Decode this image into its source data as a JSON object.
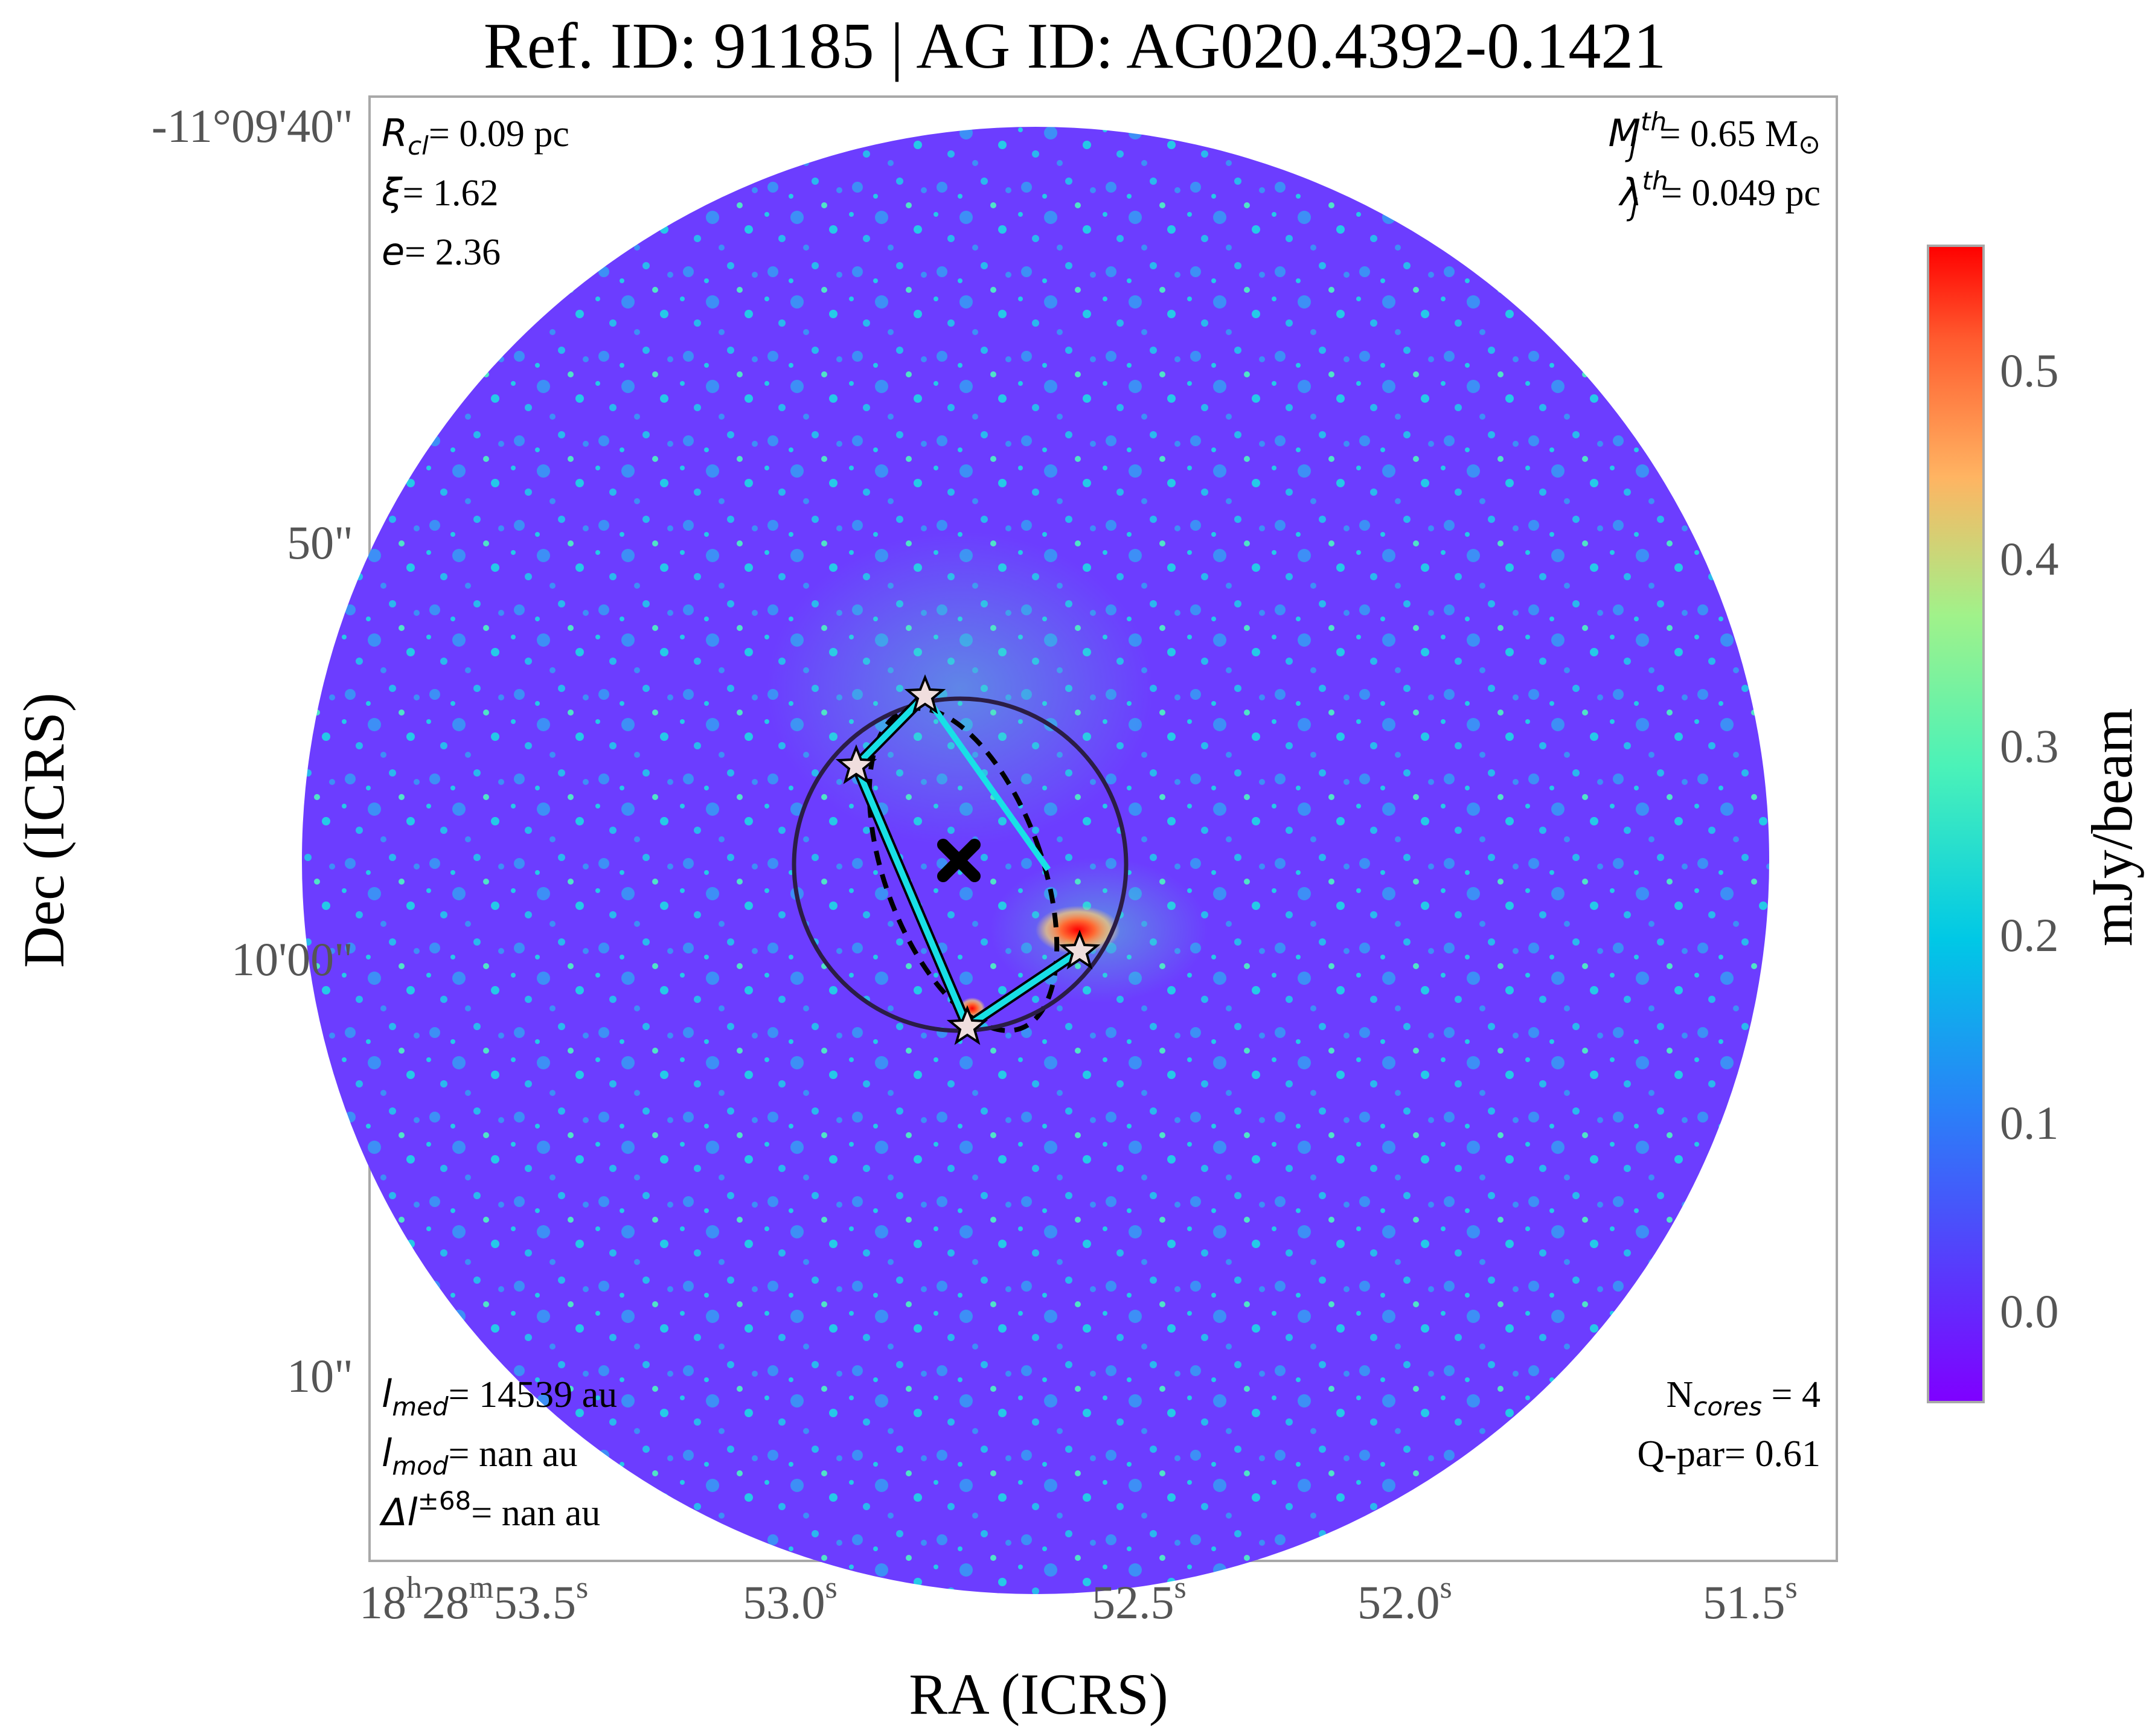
{
  "title": "Ref. ID: 91185 | AG ID: AG020.4392-0.1421",
  "axes": {
    "xlabel": "RA (ICRS)",
    "ylabel": "Dec (ICRS)",
    "x_ticks": [
      {
        "main": "18",
        "sup1": "h",
        "mid": "28",
        "sup2": "m",
        "sec": "53.5",
        "sup3": "s"
      },
      {
        "sec": "53.0",
        "sup3": "s"
      },
      {
        "sec": "52.5",
        "sup3": "s"
      },
      {
        "sec": "52.0",
        "sup3": "s"
      },
      {
        "sec": "51.5",
        "sup3": "s"
      }
    ],
    "y_ticks": [
      "-11°09'40\"",
      "50\"",
      "10'00\"",
      "10\""
    ]
  },
  "colorbar": {
    "label": "mJy/beam",
    "ticks": [
      "0.5",
      "0.4",
      "0.3",
      "0.2",
      "0.1",
      "0.0"
    ],
    "tick_values": [
      0.5,
      0.4,
      0.3,
      0.2,
      0.1,
      0.0
    ],
    "range": [
      -0.05,
      0.57
    ],
    "colormap": "rainbow",
    "colors": [
      "#7f00ff",
      "#00b4ec",
      "#80ff9e",
      "#ffb462",
      "#ff0000"
    ]
  },
  "annotations": {
    "top_left": {
      "r_sym": "R",
      "r_sub": "cl",
      "r_val": "= 0.09 pc",
      "xi_sym": "ξ",
      "xi_val": "= 1.62",
      "e_sym": "e",
      "e_val": "= 2.36"
    },
    "top_right": {
      "m_sym": "M",
      "m_sub": "J",
      "m_sup": "th",
      "m_val": "= 0.65 M",
      "m_unit": "⊙",
      "l_sym": "λ",
      "l_sub": "J",
      "l_sup": "th",
      "l_val": "= 0.049 pc"
    },
    "bottom_left": {
      "lmed_sym": "l",
      "lmed_sub": "med",
      "lmed_val": "= 14539 au",
      "lmod_sym": "l",
      "lmod_sub": "mod",
      "lmod_val": "= nan au",
      "dl_sym": "Δl",
      "dl_sup": "±68",
      "dl_val": "= nan au"
    },
    "bottom_right": {
      "n_pre": "N",
      "n_sub": "cores",
      "n_val": " = 4",
      "q_text": "Q-par= 0.61"
    }
  },
  "map": {
    "cores_count": 4,
    "markers": [
      "core-star",
      "center-cross"
    ]
  }
}
